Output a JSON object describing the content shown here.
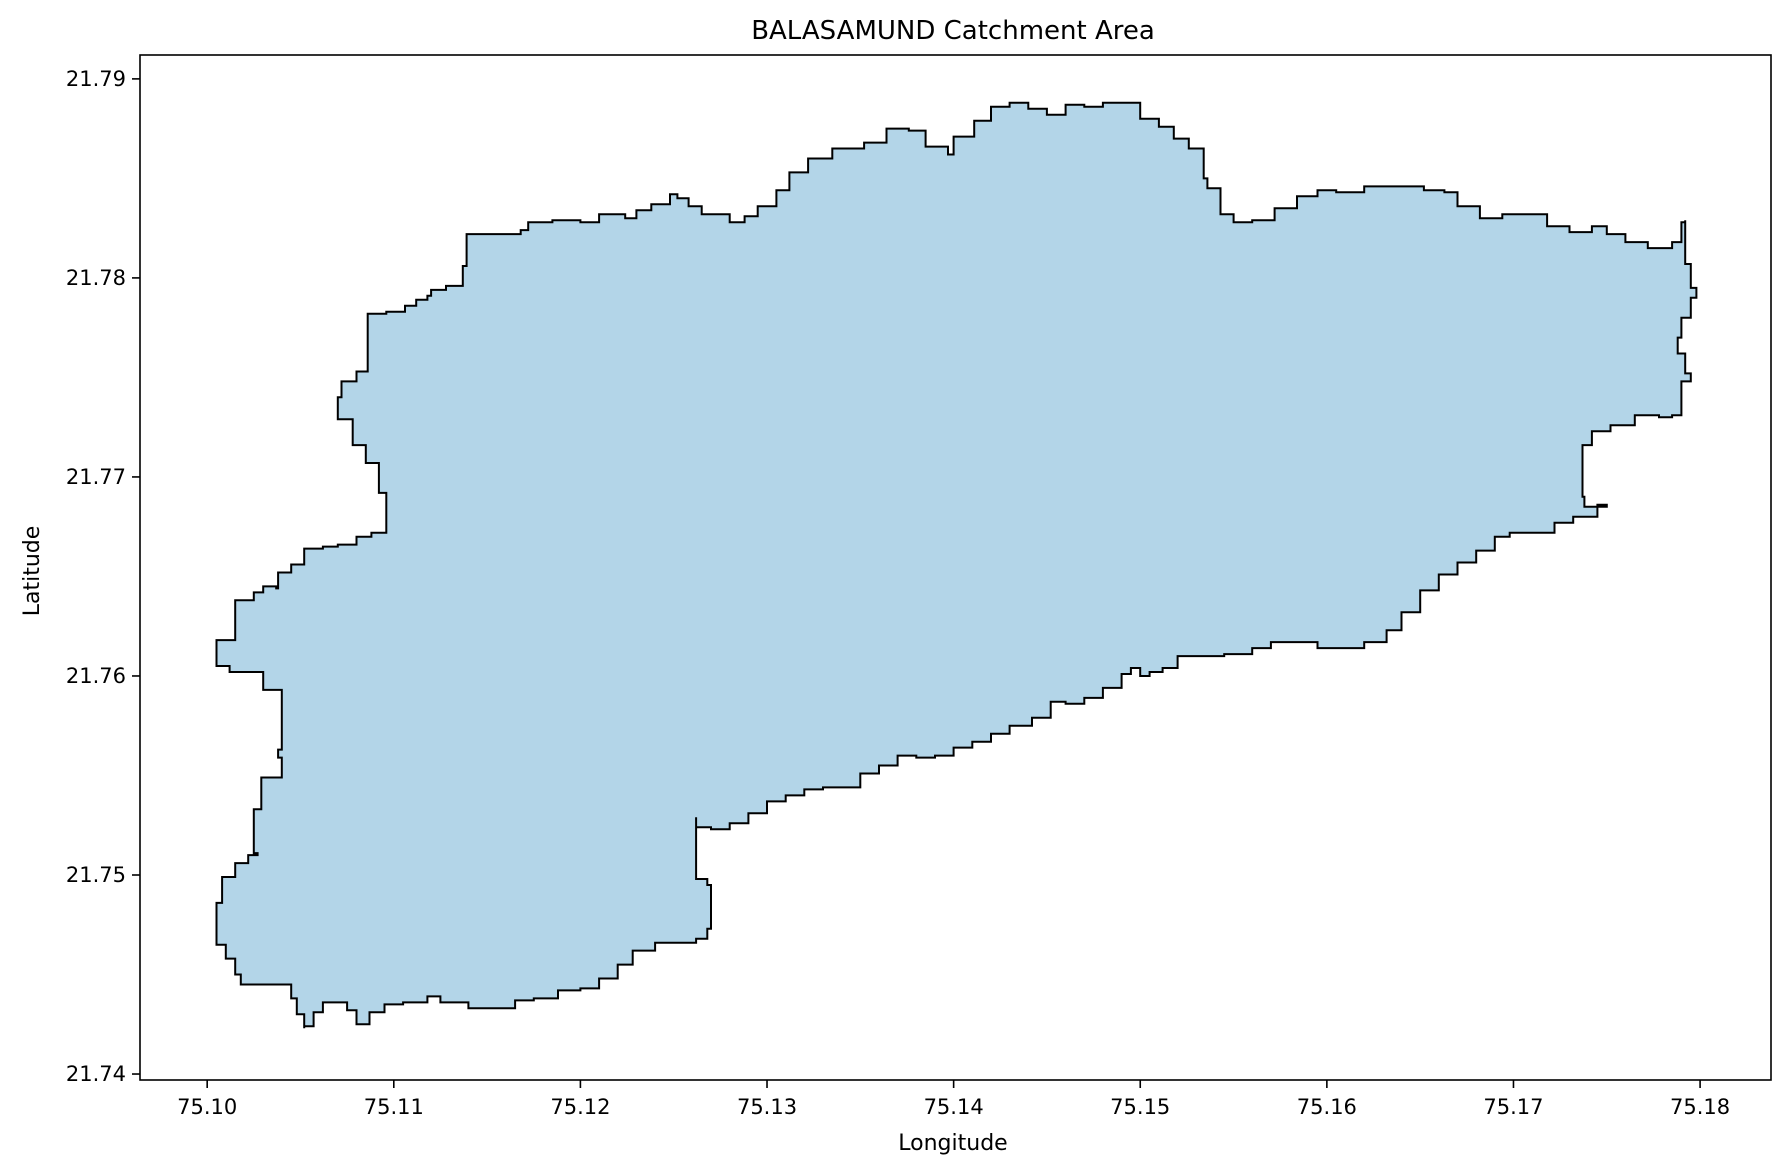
{
  "figure": {
    "title": "BALASAMUND Catchment Area",
    "xlabel": "Longitude",
    "ylabel": "Latitude"
  },
  "colors": {
    "fill": "#b3d5e8",
    "edge": "#000000",
    "axes": "#000000",
    "background": "#ffffff"
  },
  "chart_data": {
    "type": "map",
    "title": "BALASAMUND Catchment Area",
    "xlabel": "Longitude",
    "ylabel": "Latitude",
    "xlim": [
      75.0964,
      75.1838
    ],
    "ylim": [
      21.7397,
      21.7912
    ],
    "xticks": [
      {
        "value": 75.1,
        "label": "75.10"
      },
      {
        "value": 75.11,
        "label": "75.11"
      },
      {
        "value": 75.12,
        "label": "75.12"
      },
      {
        "value": 75.13,
        "label": "75.13"
      },
      {
        "value": 75.14,
        "label": "75.14"
      },
      {
        "value": 75.15,
        "label": "75.15"
      },
      {
        "value": 75.16,
        "label": "75.16"
      },
      {
        "value": 75.17,
        "label": "75.17"
      },
      {
        "value": 75.18,
        "label": "75.18"
      }
    ],
    "yticks": [
      {
        "value": 21.74,
        "label": "21.74"
      },
      {
        "value": 21.75,
        "label": "21.75"
      },
      {
        "value": 21.76,
        "label": "21.76"
      },
      {
        "value": 21.77,
        "label": "21.77"
      },
      {
        "value": 21.78,
        "label": "21.78"
      },
      {
        "value": 21.79,
        "label": "21.79"
      }
    ],
    "grid": false,
    "legend": "none",
    "polygon": [
      [
        75.1005,
        21.7472
      ],
      [
        75.1005,
        21.7486
      ],
      [
        75.1008,
        21.7499
      ],
      [
        75.1015,
        21.7506
      ],
      [
        75.1022,
        21.751
      ],
      [
        75.1027,
        21.7511
      ],
      [
        75.1025,
        21.7533
      ],
      [
        75.1029,
        21.7549
      ],
      [
        75.104,
        21.7551
      ],
      [
        75.104,
        21.7559
      ],
      [
        75.1038,
        21.7563
      ],
      [
        75.104,
        21.7567
      ],
      [
        75.104,
        21.7593
      ],
      [
        75.103,
        21.7602
      ],
      [
        75.1012,
        21.7605
      ],
      [
        75.1005,
        21.7605
      ],
      [
        75.1005,
        21.7618
      ],
      [
        75.1015,
        21.7625
      ],
      [
        75.1015,
        21.7638
      ],
      [
        75.1025,
        21.7642
      ],
      [
        75.103,
        21.7645
      ],
      [
        75.1037,
        21.7644
      ],
      [
        75.1038,
        21.7652
      ],
      [
        75.1045,
        21.7656
      ],
      [
        75.1052,
        21.7658
      ],
      [
        75.1052,
        21.7664
      ],
      [
        75.1062,
        21.7665
      ],
      [
        75.107,
        21.7666
      ],
      [
        75.108,
        21.767
      ],
      [
        75.1088,
        21.7672
      ],
      [
        75.1096,
        21.7672
      ],
      [
        75.1096,
        21.7692
      ],
      [
        75.1092,
        21.7707
      ],
      [
        75.1085,
        21.7716
      ],
      [
        75.1078,
        21.7729
      ],
      [
        75.107,
        21.774
      ],
      [
        75.1072,
        21.7748
      ],
      [
        75.108,
        21.7753
      ],
      [
        75.1086,
        21.7753
      ],
      [
        75.1086,
        21.7782
      ],
      [
        75.1096,
        21.7783
      ],
      [
        75.1106,
        21.7786
      ],
      [
        75.1112,
        21.7789
      ],
      [
        75.1118,
        21.7791
      ],
      [
        75.112,
        21.7794
      ],
      [
        75.1128,
        21.7796
      ],
      [
        75.1137,
        21.7806
      ],
      [
        75.1139,
        21.7822
      ],
      [
        75.1158,
        21.7822
      ],
      [
        75.1168,
        21.7824
      ],
      [
        75.1172,
        21.7828
      ],
      [
        75.1185,
        21.7829
      ],
      [
        75.12,
        21.7828
      ],
      [
        75.121,
        21.7832
      ],
      [
        75.1224,
        21.783
      ],
      [
        75.123,
        21.7834
      ],
      [
        75.1238,
        21.7837
      ],
      [
        75.1248,
        21.7842
      ],
      [
        75.1252,
        21.784
      ],
      [
        75.1258,
        21.7836
      ],
      [
        75.1265,
        21.7832
      ],
      [
        75.128,
        21.7828
      ],
      [
        75.1288,
        21.7831
      ],
      [
        75.1295,
        21.7836
      ],
      [
        75.1305,
        21.7844
      ],
      [
        75.1312,
        21.7853
      ],
      [
        75.1322,
        21.786
      ],
      [
        75.1335,
        21.7865
      ],
      [
        75.1352,
        21.7868
      ],
      [
        75.1364,
        21.7875
      ],
      [
        75.1376,
        21.7874
      ],
      [
        75.1385,
        21.7866
      ],
      [
        75.1397,
        21.7862
      ],
      [
        75.14,
        21.7871
      ],
      [
        75.1411,
        21.7879
      ],
      [
        75.142,
        21.7886
      ],
      [
        75.143,
        21.7888
      ],
      [
        75.144,
        21.7885
      ],
      [
        75.145,
        21.7882
      ],
      [
        75.146,
        21.7887
      ],
      [
        75.147,
        21.7886
      ],
      [
        75.148,
        21.7888
      ],
      [
        75.149,
        21.7888
      ],
      [
        75.15,
        21.788
      ],
      [
        75.151,
        21.7876
      ],
      [
        75.1518,
        21.787
      ],
      [
        75.1526,
        21.7865
      ],
      [
        75.1534,
        21.785
      ],
      [
        75.1536,
        21.7845
      ],
      [
        75.1543,
        21.7832
      ],
      [
        75.155,
        21.7828
      ],
      [
        75.156,
        21.7829
      ],
      [
        75.1572,
        21.7835
      ],
      [
        75.1584,
        21.7841
      ],
      [
        75.1595,
        21.7844
      ],
      [
        75.1605,
        21.7843
      ],
      [
        75.162,
        21.7846
      ],
      [
        75.1635,
        21.7846
      ],
      [
        75.1652,
        21.7844
      ],
      [
        75.1663,
        21.7843
      ],
      [
        75.167,
        21.7836
      ],
      [
        75.1682,
        21.783
      ],
      [
        75.1694,
        21.7832
      ],
      [
        75.1708,
        21.7832
      ],
      [
        75.1718,
        21.7826
      ],
      [
        75.173,
        21.7823
      ],
      [
        75.1742,
        21.7826
      ],
      [
        75.175,
        21.7822
      ],
      [
        75.176,
        21.7818
      ],
      [
        75.1772,
        21.7815
      ],
      [
        75.1785,
        21.7818
      ],
      [
        75.179,
        21.7828
      ],
      [
        75.1792,
        21.7829
      ],
      [
        75.1792,
        21.7807
      ],
      [
        75.1795,
        21.7795
      ],
      [
        75.1798,
        21.779
      ],
      [
        75.1795,
        21.778
      ],
      [
        75.179,
        21.777
      ],
      [
        75.1788,
        21.7762
      ],
      [
        75.1792,
        21.7752
      ],
      [
        75.1795,
        21.7748
      ],
      [
        75.179,
        21.7738
      ],
      [
        75.179,
        21.7731
      ],
      [
        75.1785,
        21.773
      ],
      [
        75.1778,
        21.7731
      ],
      [
        75.1765,
        21.7726
      ],
      [
        75.1752,
        21.7723
      ],
      [
        75.1742,
        21.7716
      ],
      [
        75.1737,
        21.7708
      ],
      [
        75.1737,
        21.769
      ],
      [
        75.1738,
        21.7685
      ],
      [
        75.175,
        21.7686
      ],
      [
        75.1745,
        21.768
      ],
      [
        75.1732,
        21.7677
      ],
      [
        75.1722,
        21.7672
      ],
      [
        75.1707,
        21.7672
      ],
      [
        75.1698,
        21.767
      ],
      [
        75.169,
        21.7663
      ],
      [
        75.168,
        21.7657
      ],
      [
        75.167,
        21.7651
      ],
      [
        75.166,
        21.7643
      ],
      [
        75.165,
        21.7632
      ],
      [
        75.164,
        21.7623
      ],
      [
        75.1632,
        21.7617
      ],
      [
        75.162,
        21.7614
      ],
      [
        75.1605,
        21.7614
      ],
      [
        75.1595,
        21.7617
      ],
      [
        75.158,
        21.7617
      ],
      [
        75.157,
        21.7614
      ],
      [
        75.156,
        21.7611
      ],
      [
        75.1545,
        21.761
      ],
      [
        75.153,
        21.761
      ],
      [
        75.152,
        21.7604
      ],
      [
        75.1512,
        21.7602
      ],
      [
        75.1505,
        21.76
      ],
      [
        75.15,
        21.7604
      ],
      [
        75.1495,
        21.7601
      ],
      [
        75.149,
        21.7594
      ],
      [
        75.148,
        21.7589
      ],
      [
        75.147,
        21.7586
      ],
      [
        75.146,
        21.7587
      ],
      [
        75.1452,
        21.7579
      ],
      [
        75.1442,
        21.7575
      ],
      [
        75.143,
        21.7571
      ],
      [
        75.142,
        21.7567
      ],
      [
        75.141,
        21.7564
      ],
      [
        75.14,
        21.756
      ],
      [
        75.139,
        21.7559
      ],
      [
        75.138,
        21.756
      ],
      [
        75.137,
        21.7555
      ],
      [
        75.136,
        21.7551
      ],
      [
        75.135,
        21.7544
      ],
      [
        75.134,
        21.7544
      ],
      [
        75.133,
        21.7543
      ],
      [
        75.132,
        21.754
      ],
      [
        75.131,
        21.7537
      ],
      [
        75.13,
        21.7531
      ],
      [
        75.129,
        21.7526
      ],
      [
        75.128,
        21.7523
      ],
      [
        75.127,
        21.7524
      ],
      [
        75.1262,
        21.7529
      ],
      [
        75.1262,
        21.7498
      ],
      [
        75.1268,
        21.7495
      ],
      [
        75.127,
        21.7488
      ],
      [
        75.127,
        21.7473
      ],
      [
        75.1268,
        21.7468
      ],
      [
        75.1262,
        21.7466
      ],
      [
        75.125,
        21.7466
      ],
      [
        75.124,
        21.7462
      ],
      [
        75.1228,
        21.7455
      ],
      [
        75.122,
        21.7448
      ],
      [
        75.121,
        21.7443
      ],
      [
        75.12,
        21.7442
      ],
      [
        75.1188,
        21.7438
      ],
      [
        75.1175,
        21.7437
      ],
      [
        75.1165,
        21.7433
      ],
      [
        75.115,
        21.7433
      ],
      [
        75.114,
        21.7436
      ],
      [
        75.113,
        21.7436
      ],
      [
        75.1125,
        21.7439
      ],
      [
        75.1118,
        21.7436
      ],
      [
        75.1105,
        21.7435
      ],
      [
        75.1095,
        21.7431
      ],
      [
        75.1087,
        21.7425
      ],
      [
        75.108,
        21.7432
      ],
      [
        75.1075,
        21.7436
      ],
      [
        75.1062,
        21.7431
      ],
      [
        75.1057,
        21.7424
      ],
      [
        75.1052,
        21.7423
      ],
      [
        75.1052,
        21.743
      ],
      [
        75.1048,
        21.7438
      ],
      [
        75.1045,
        21.7445
      ],
      [
        75.1035,
        21.7445
      ],
      [
        75.1025,
        21.7445
      ],
      [
        75.1018,
        21.745
      ],
      [
        75.1015,
        21.7458
      ],
      [
        75.101,
        21.7465
      ]
    ]
  }
}
